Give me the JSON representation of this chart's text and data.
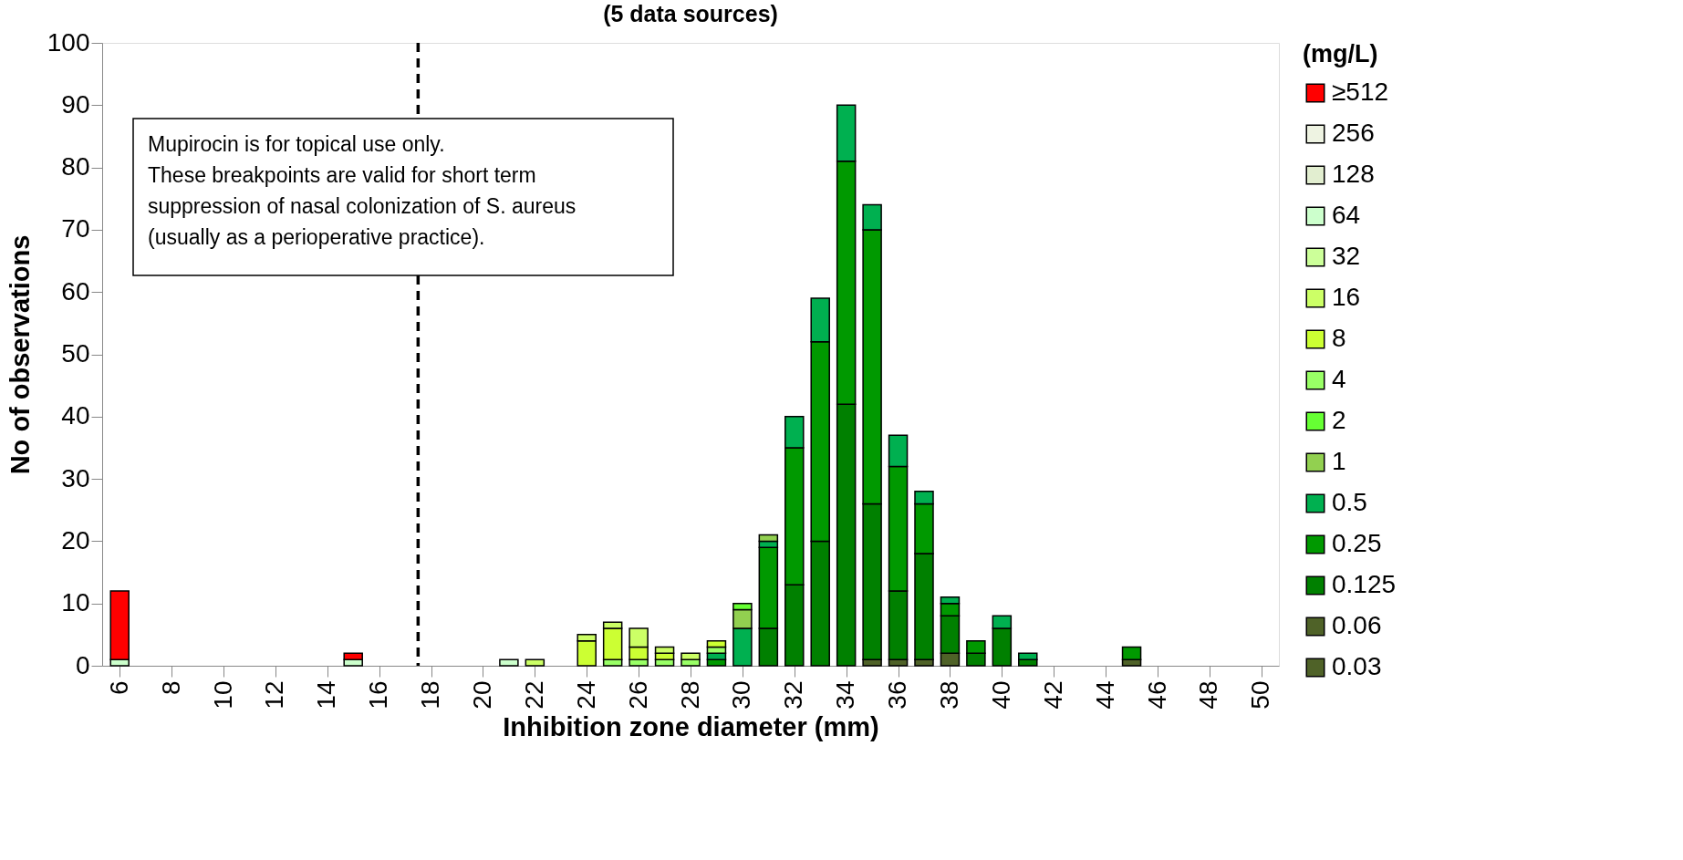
{
  "chart_data": {
    "type": "bar",
    "stacked": true,
    "title": "(5 data sources)",
    "xlabel": "Inhibition zone diameter (mm)",
    "ylabel": "No of observations",
    "legend_title": "(mg/L)",
    "legend": "right",
    "x": [
      6,
      7,
      8,
      9,
      10,
      11,
      12,
      13,
      14,
      15,
      16,
      17,
      18,
      19,
      20,
      21,
      22,
      23,
      24,
      25,
      26,
      27,
      28,
      29,
      30,
      31,
      32,
      33,
      34,
      35,
      36,
      37,
      38,
      39,
      40,
      41,
      42,
      43,
      44,
      45
    ],
    "xlim": [
      5.5,
      50.5
    ],
    "xticks": [
      6,
      8,
      10,
      12,
      14,
      16,
      18,
      20,
      22,
      24,
      26,
      28,
      30,
      32,
      34,
      36,
      38,
      40,
      42,
      44,
      46,
      48,
      50
    ],
    "ylim": [
      0,
      100
    ],
    "yticks": [
      0,
      10,
      20,
      30,
      40,
      50,
      60,
      70,
      80,
      90,
      100
    ],
    "grid": false,
    "series": [
      {
        "name": "0.03",
        "color": "#4f6228",
        "values": [
          null,
          null,
          null,
          null,
          null,
          null,
          null,
          null,
          null,
          null,
          null,
          null,
          null,
          null,
          null,
          null,
          null,
          null,
          null,
          null,
          null,
          null,
          null,
          null,
          null,
          null,
          null,
          null,
          null,
          null,
          null,
          null,
          null,
          null,
          null,
          null,
          null,
          null,
          null,
          null
        ]
      },
      {
        "name": "0.06",
        "color": "#4f6228",
        "values": [
          null,
          null,
          null,
          null,
          null,
          null,
          null,
          null,
          null,
          null,
          null,
          null,
          null,
          null,
          null,
          null,
          null,
          null,
          null,
          null,
          null,
          null,
          null,
          null,
          null,
          null,
          null,
          null,
          null,
          1,
          1,
          1,
          2,
          null,
          null,
          null,
          null,
          null,
          null,
          1
        ]
      },
      {
        "name": "0.125",
        "color": "#008000",
        "values": [
          null,
          null,
          null,
          null,
          null,
          null,
          null,
          null,
          null,
          null,
          null,
          null,
          null,
          null,
          null,
          null,
          null,
          null,
          null,
          null,
          null,
          null,
          null,
          null,
          null,
          6,
          13,
          20,
          42,
          25,
          11,
          17,
          6,
          2,
          6,
          1,
          null,
          null,
          null,
          null
        ]
      },
      {
        "name": "0.25",
        "color": "#009900",
        "values": [
          null,
          null,
          null,
          null,
          null,
          null,
          null,
          null,
          null,
          null,
          null,
          null,
          null,
          null,
          null,
          null,
          null,
          null,
          null,
          null,
          null,
          null,
          null,
          1,
          null,
          13,
          22,
          32,
          39,
          44,
          20,
          8,
          2,
          2,
          null,
          null,
          null,
          null,
          null,
          2
        ]
      },
      {
        "name": "0.5",
        "color": "#00b050",
        "values": [
          null,
          null,
          null,
          null,
          null,
          null,
          null,
          null,
          null,
          null,
          null,
          null,
          null,
          null,
          null,
          null,
          null,
          null,
          null,
          null,
          null,
          null,
          null,
          1,
          6,
          1,
          5,
          7,
          9,
          4,
          5,
          2,
          1,
          null,
          2,
          1,
          null,
          null,
          null,
          null
        ]
      },
      {
        "name": "1",
        "color": "#92d050",
        "values": [
          null,
          null,
          null,
          null,
          null,
          null,
          null,
          null,
          null,
          null,
          null,
          null,
          null,
          null,
          null,
          null,
          null,
          null,
          null,
          null,
          null,
          null,
          null,
          null,
          3,
          1,
          null,
          null,
          null,
          null,
          null,
          null,
          null,
          null,
          null,
          null,
          null,
          null,
          null,
          null
        ]
      },
      {
        "name": "2",
        "color": "#66ff33",
        "values": [
          null,
          null,
          null,
          null,
          null,
          null,
          null,
          null,
          null,
          null,
          null,
          null,
          null,
          null,
          null,
          null,
          null,
          null,
          null,
          null,
          null,
          null,
          null,
          null,
          1,
          null,
          null,
          null,
          null,
          null,
          null,
          null,
          null,
          null,
          null,
          null,
          null,
          null,
          null,
          null
        ]
      },
      {
        "name": "4",
        "color": "#99ff66",
        "values": [
          null,
          null,
          null,
          null,
          null,
          null,
          null,
          null,
          null,
          null,
          null,
          null,
          null,
          null,
          null,
          null,
          null,
          null,
          null,
          1,
          1,
          1,
          1,
          1,
          null,
          null,
          null,
          null,
          null,
          null,
          null,
          null,
          null,
          null,
          null,
          null,
          null,
          null,
          null,
          null
        ]
      },
      {
        "name": "8",
        "color": "#ccff33",
        "values": [
          null,
          null,
          null,
          null,
          null,
          null,
          null,
          null,
          null,
          null,
          null,
          null,
          null,
          null,
          null,
          null,
          null,
          null,
          4,
          5,
          2,
          1,
          null,
          1,
          null,
          null,
          null,
          null,
          null,
          null,
          null,
          null,
          null,
          null,
          null,
          null,
          null,
          null,
          null,
          null
        ]
      },
      {
        "name": "16",
        "color": "#ccff66",
        "values": [
          null,
          null,
          null,
          null,
          null,
          null,
          null,
          null,
          null,
          null,
          null,
          null,
          null,
          null,
          null,
          null,
          1,
          null,
          1,
          1,
          3,
          1,
          1,
          null,
          null,
          null,
          null,
          null,
          null,
          null,
          null,
          null,
          null,
          null,
          null,
          null,
          null,
          null,
          null,
          null
        ]
      },
      {
        "name": "32",
        "color": "#ccff99",
        "values": [
          null,
          null,
          null,
          null,
          null,
          null,
          null,
          null,
          null,
          null,
          null,
          null,
          null,
          null,
          null,
          null,
          null,
          null,
          null,
          null,
          null,
          null,
          null,
          null,
          null,
          null,
          null,
          null,
          null,
          null,
          null,
          null,
          null,
          null,
          null,
          null,
          null,
          null,
          null,
          null
        ]
      },
      {
        "name": "64",
        "color": "#ccffcc",
        "values": [
          1,
          null,
          null,
          null,
          null,
          null,
          null,
          null,
          null,
          1,
          null,
          null,
          null,
          null,
          null,
          1,
          null,
          null,
          null,
          null,
          null,
          null,
          null,
          null,
          null,
          null,
          null,
          null,
          null,
          null,
          null,
          null,
          null,
          null,
          null,
          null,
          null,
          null,
          null,
          null
        ]
      },
      {
        "name": "128",
        "color": "#e2eed0",
        "values": [
          null,
          null,
          null,
          null,
          null,
          null,
          null,
          null,
          null,
          null,
          null,
          null,
          null,
          null,
          null,
          null,
          null,
          null,
          null,
          null,
          null,
          null,
          null,
          null,
          null,
          null,
          null,
          null,
          null,
          null,
          null,
          null,
          null,
          null,
          null,
          null,
          null,
          null,
          null,
          null
        ]
      },
      {
        "name": "256",
        "color": "#eef3e2",
        "values": [
          null,
          null,
          null,
          null,
          null,
          null,
          null,
          null,
          null,
          null,
          null,
          null,
          null,
          null,
          null,
          null,
          null,
          null,
          null,
          null,
          null,
          null,
          null,
          null,
          null,
          null,
          null,
          null,
          null,
          null,
          null,
          null,
          null,
          null,
          null,
          null,
          null,
          null,
          null,
          null
        ]
      },
      {
        "name": "≥512",
        "color": "#ff0000",
        "values": [
          11,
          null,
          null,
          null,
          null,
          null,
          null,
          null,
          null,
          1,
          null,
          null,
          null,
          null,
          null,
          null,
          null,
          null,
          null,
          null,
          null,
          null,
          null,
          null,
          null,
          null,
          null,
          null,
          null,
          null,
          null,
          null,
          null,
          null,
          null,
          null,
          null,
          null,
          null,
          null
        ]
      }
    ],
    "ref_lines": [
      {
        "axis": "x",
        "value": 17.5,
        "label": null,
        "line_style": "dashed",
        "color": "#000000"
      }
    ],
    "annotations": [
      "Mupirocin is for topical use only.\nThese breakpoints are valid for short term\nsuppression of nasal colonization of S. aureus\n(usually as a perioperative practice)."
    ]
  }
}
